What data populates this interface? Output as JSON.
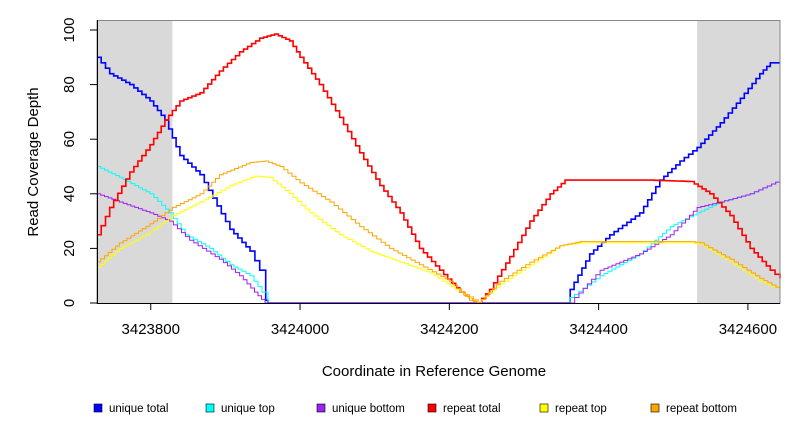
{
  "chart_data": {
    "type": "line",
    "title": "",
    "xlabel": "Coordinate in Reference Genome",
    "ylabel": "Read Coverage Depth",
    "xlim": [
      3423728,
      3424643
    ],
    "ylim": [
      0,
      100
    ],
    "xticks": [
      3423800,
      3424000,
      3424200,
      3424400,
      3424600
    ],
    "yticks": [
      0,
      20,
      40,
      60,
      80,
      100
    ],
    "shaded_regions": [
      [
        3423728,
        3423829
      ],
      [
        3424532,
        3424643
      ]
    ],
    "shade_color": "#d9d9d9",
    "legend_position": "bottom",
    "series": [
      {
        "name": "unique total",
        "color": "#0000ff",
        "width": 1.6,
        "x": [
          3423728,
          3423745,
          3423772,
          3423799,
          3423819,
          3423839,
          3423866,
          3423906,
          3423933,
          3423946,
          3423954,
          3423957,
          3424356,
          3424362,
          3424388,
          3424415,
          3424455,
          3424482,
          3424509,
          3424532,
          3424563,
          3424590,
          3424616,
          3424630,
          3424643
        ],
        "y": [
          90,
          84,
          80,
          74,
          67,
          54,
          47,
          27,
          19,
          12,
          1,
          0,
          0,
          5,
          18,
          25,
          33,
          45,
          52,
          57,
          66,
          75,
          84,
          88,
          88
        ]
      },
      {
        "name": "unique top",
        "color": "#00ffff",
        "width": 1,
        "x": [
          3423728,
          3423758,
          3423799,
          3423825,
          3423846,
          3423879,
          3423906,
          3423933,
          3423949,
          3423957,
          3424356,
          3424362,
          3424402,
          3424455,
          3424496,
          3424532,
          3424563,
          3424603,
          3424643
        ],
        "y": [
          50,
          46,
          40,
          33,
          25,
          20,
          14,
          10,
          4,
          0,
          0,
          2,
          10,
          18,
          28,
          33,
          37,
          40,
          45
        ]
      },
      {
        "name": "unique bottom",
        "color": "#a020f0",
        "width": 1,
        "x": [
          3423728,
          3423758,
          3423799,
          3423825,
          3423852,
          3423892,
          3423919,
          3423939,
          3423953,
          3423957,
          3424362,
          3424368,
          3424402,
          3424455,
          3424496,
          3424532,
          3424563,
          3424603,
          3424643
        ],
        "y": [
          40,
          37,
          33,
          30,
          23,
          16,
          10,
          4,
          0,
          0,
          0,
          2,
          12,
          18,
          25,
          35,
          37,
          40,
          45
        ]
      },
      {
        "name": "repeat total",
        "color": "#ff0000",
        "width": 1.6,
        "x": [
          3423728,
          3423745,
          3423772,
          3423799,
          3423819,
          3423839,
          3423866,
          3423892,
          3423919,
          3423946,
          3423966,
          3423986,
          3424000,
          3424026,
          3424053,
          3424080,
          3424107,
          3424134,
          3424160,
          3424187,
          3424214,
          3424238,
          3424254,
          3424281,
          3424308,
          3424335,
          3424355,
          3424402,
          3424469,
          3424523,
          3424549,
          3424576,
          3424603,
          3424630,
          3424643
        ],
        "y": [
          25,
          35,
          48,
          58,
          67,
          74,
          77,
          85,
          92,
          97,
          98.5,
          96,
          90,
          80,
          68,
          55,
          43,
          33,
          20,
          12,
          4,
          0,
          5,
          17,
          30,
          40,
          45,
          45,
          45,
          44.5,
          40,
          32,
          20,
          12,
          9
        ]
      },
      {
        "name": "repeat top",
        "color": "#ffff00",
        "width": 1,
        "x": [
          3423728,
          3423758,
          3423799,
          3423829,
          3423866,
          3423906,
          3423939,
          3423959,
          3423986,
          3424013,
          3424053,
          3424093,
          3424134,
          3424174,
          3424214,
          3424238,
          3424268,
          3424308,
          3424348,
          3424375,
          3424523,
          3424536,
          3424576,
          3424616,
          3424643
        ],
        "y": [
          13,
          20,
          26,
          32,
          37,
          43,
          46.5,
          46,
          40,
          33,
          25,
          19,
          15,
          11,
          4,
          0,
          7,
          14,
          21,
          22,
          22,
          21.5,
          15,
          8,
          5
        ]
      },
      {
        "name": "repeat bottom",
        "color": "#ffa500",
        "width": 1,
        "x": [
          3423728,
          3423758,
          3423799,
          3423829,
          3423866,
          3423892,
          3423933,
          3423953,
          3423973,
          3424000,
          3424040,
          3424080,
          3424120,
          3424160,
          3424200,
          3424227,
          3424238,
          3424268,
          3424308,
          3424348,
          3424375,
          3424523,
          3424536,
          3424576,
          3424616,
          3424643
        ],
        "y": [
          15,
          22,
          29,
          35,
          40,
          47,
          51.5,
          52,
          50,
          44,
          37,
          28,
          20,
          14,
          8,
          1,
          0,
          8,
          15,
          21,
          22.5,
          22.5,
          22,
          16,
          9,
          5
        ]
      }
    ]
  }
}
